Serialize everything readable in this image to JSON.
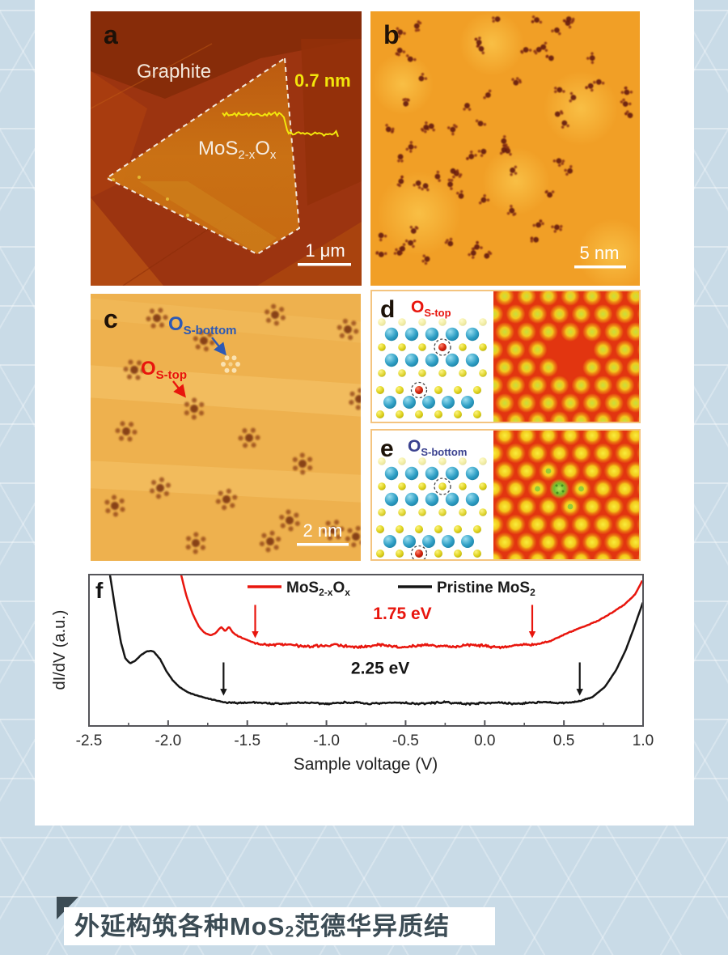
{
  "colors": {
    "page_bg": "#c9dbe7",
    "card_bg": "#ffffff",
    "caption_ink": "#3c4c55",
    "panel_a_bg": "#9c3410",
    "panel_b_bg": "#f19f26",
    "panel_c_bg": "#eeb14e",
    "sim_bg": "#e23510",
    "label_yellow": "#f2e60c",
    "label_blue_bright": "#2d59b5",
    "label_blue_dark": "#3a418f",
    "label_red": "#e8150d",
    "atom_blue": "#2f9fc5",
    "atom_yellow": "#ddd21c",
    "atom_red": "#d62310",
    "sim_defect_green": "#6fbe2e"
  },
  "panel_a": {
    "label": "a",
    "substrate_label": "Graphite",
    "flake": {
      "p1": "MoS",
      "s1": "2-x",
      "p2": "O",
      "s2": "x"
    },
    "step_height": "0.7 nm",
    "scale_bar": "1 μm"
  },
  "panel_b": {
    "label": "b",
    "scale_bar": "5 nm"
  },
  "panel_c": {
    "label": "c",
    "defect_bottom": {
      "p1": "O",
      "s1": "S-bottom"
    },
    "defect_top": {
      "p1": "O",
      "s1": "S-top"
    },
    "scale_bar": "2 nm"
  },
  "panel_d": {
    "label": "d",
    "title": {
      "p1": "O",
      "s1": "S-top"
    }
  },
  "panel_e": {
    "label": "e",
    "title": {
      "p1": "O",
      "s1": "S-bottom"
    }
  },
  "panel_f": {
    "label": "f"
  },
  "caption": {
    "p1": "外延构筑各种MoS",
    "s1": "2",
    "p2": "范德华异质结"
  },
  "chart_data": {
    "type": "line",
    "xlabel": "Sample voltage (V)",
    "ylabel": "dI/dV (a.u.)",
    "xlim": [
      -2.5,
      1.0
    ],
    "xticks": [
      "-2.5",
      "-2.0",
      "-1.5",
      "-1.0",
      "-0.5",
      "0.0",
      "0.5",
      "1.0"
    ],
    "grid": false,
    "legend_position": "top-center",
    "series": [
      {
        "name_parts": {
          "p1": "MoS",
          "s1": "2-x",
          "p2": "O",
          "s2": "x"
        },
        "color": "#e8150d",
        "band_gap": "1.75 eV",
        "band_edges_V": [
          -1.45,
          0.3
        ],
        "plateau_norm": 0.53,
        "anchors": [
          [
            -1.93,
            1.05
          ],
          [
            -1.885,
            0.86
          ],
          [
            -1.845,
            0.74
          ],
          [
            -1.805,
            0.655
          ],
          [
            -1.77,
            0.615
          ],
          [
            -1.735,
            0.6
          ],
          [
            -1.7,
            0.615
          ],
          [
            -1.665,
            0.655
          ],
          [
            -1.64,
            0.625
          ],
          [
            -1.615,
            0.655
          ],
          [
            -1.59,
            0.615
          ],
          [
            -1.555,
            0.59
          ],
          [
            -1.52,
            0.575
          ],
          [
            -1.48,
            0.56
          ],
          [
            -1.45,
            0.55
          ],
          [
            -1.38,
            0.54
          ],
          [
            -1.25,
            0.532
          ],
          [
            -1.0,
            0.528
          ],
          [
            -0.75,
            0.53
          ],
          [
            -0.5,
            0.527
          ],
          [
            -0.25,
            0.53
          ],
          [
            0.0,
            0.528
          ],
          [
            0.15,
            0.527
          ],
          [
            0.3,
            0.535
          ],
          [
            0.42,
            0.565
          ],
          [
            0.52,
            0.61
          ],
          [
            0.62,
            0.655
          ],
          [
            0.72,
            0.7
          ],
          [
            0.8,
            0.745
          ],
          [
            0.88,
            0.8
          ],
          [
            0.95,
            0.87
          ],
          [
            1.0,
            0.97
          ]
        ]
      },
      {
        "name_parts": {
          "p1": "Pristine MoS",
          "s1": "2",
          "p2": "",
          "s2": ""
        },
        "color": "#151515",
        "band_gap": "2.25 eV",
        "band_edges_V": [
          -1.65,
          0.6
        ],
        "plateau_norm": 0.15,
        "anchors": [
          [
            -2.375,
            1.05
          ],
          [
            -2.335,
            0.78
          ],
          [
            -2.3,
            0.56
          ],
          [
            -2.27,
            0.445
          ],
          [
            -2.24,
            0.415
          ],
          [
            -2.21,
            0.43
          ],
          [
            -2.17,
            0.47
          ],
          [
            -2.13,
            0.495
          ],
          [
            -2.09,
            0.49
          ],
          [
            -2.05,
            0.44
          ],
          [
            -2.01,
            0.36
          ],
          [
            -1.97,
            0.3
          ],
          [
            -1.93,
            0.26
          ],
          [
            -1.88,
            0.225
          ],
          [
            -1.83,
            0.205
          ],
          [
            -1.77,
            0.185
          ],
          [
            -1.71,
            0.17
          ],
          [
            -1.65,
            0.158
          ],
          [
            -1.5,
            0.152
          ],
          [
            -1.2,
            0.15
          ],
          [
            -0.9,
            0.152
          ],
          [
            -0.6,
            0.15
          ],
          [
            -0.3,
            0.152
          ],
          [
            0.0,
            0.15
          ],
          [
            0.3,
            0.152
          ],
          [
            0.5,
            0.155
          ],
          [
            0.6,
            0.162
          ],
          [
            0.68,
            0.19
          ],
          [
            0.76,
            0.26
          ],
          [
            0.83,
            0.37
          ],
          [
            0.89,
            0.5
          ],
          [
            0.94,
            0.64
          ],
          [
            0.98,
            0.76
          ],
          [
            1.0,
            0.82
          ]
        ]
      }
    ]
  }
}
